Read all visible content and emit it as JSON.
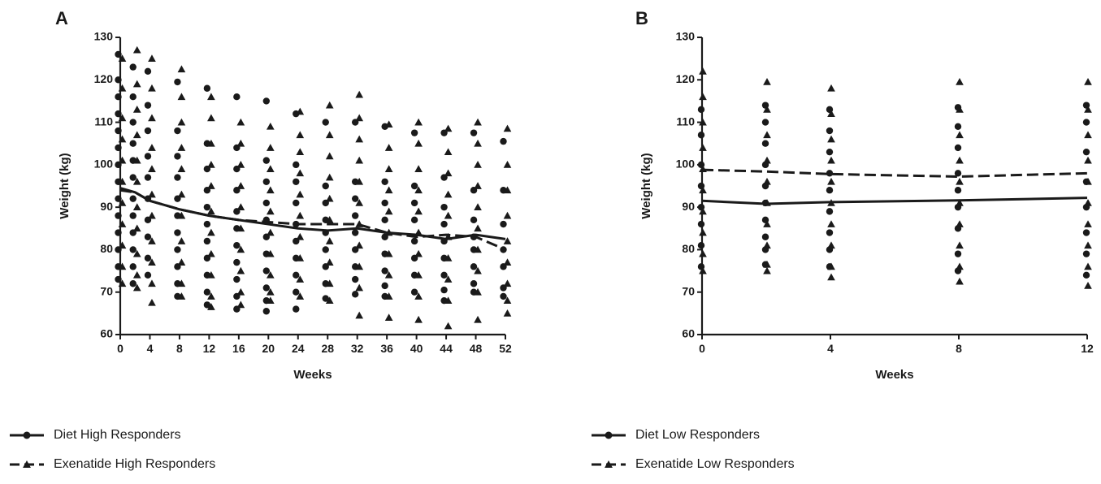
{
  "colors": {
    "ink": "#1a1a1a",
    "background": "#ffffff"
  },
  "chart_data": [
    {
      "type": "scatter",
      "panel_label": "A",
      "title": "",
      "xlabel": "Weeks",
      "ylabel": "Weight (kg)",
      "xlim": [
        0,
        52
      ],
      "ylim": [
        60,
        130
      ],
      "x_ticks": [
        0,
        4,
        8,
        12,
        16,
        20,
        24,
        28,
        32,
        36,
        40,
        44,
        48,
        52
      ],
      "y_ticks": [
        60,
        70,
        80,
        90,
        100,
        110,
        120,
        130
      ],
      "legend": [
        {
          "label": "Diet High Responders",
          "style": "solid",
          "marker": "circle"
        },
        {
          "label": "Exenatide High Responders",
          "style": "dashed",
          "marker": "triangle"
        }
      ],
      "series": [
        {
          "name": "Diet High Responders",
          "marker": "circle",
          "line_style": "solid",
          "mean": {
            "x": [
              0,
              2,
              4,
              8,
              12,
              16,
              20,
              24,
              28,
              32,
              36,
              40,
              44,
              48,
              52
            ],
            "y": [
              94.5,
              93.5,
              91.5,
              89.5,
              88,
              87,
              86,
              85,
              84.5,
              85,
              84,
              83.5,
              82.5,
              83.5,
              82.5
            ]
          },
          "points": [
            {
              "x": 0,
              "y": [
                126,
                120,
                116,
                112,
                108,
                104,
                100,
                96,
                92,
                88,
                84,
                80,
                76,
                73
              ]
            },
            {
              "x": 2,
              "y": [
                123,
                116,
                110,
                105,
                101,
                97,
                92,
                88,
                84,
                80,
                76,
                72
              ]
            },
            {
              "x": 4,
              "y": [
                122,
                114,
                108,
                102,
                97,
                92,
                87,
                83,
                78,
                74
              ]
            },
            {
              "x": 8,
              "y": [
                119.5,
                108,
                102,
                97,
                92,
                88,
                84,
                80,
                76,
                72,
                69
              ]
            },
            {
              "x": 12,
              "y": [
                118,
                105,
                99,
                94,
                90,
                86,
                82,
                78,
                74,
                70,
                67
              ]
            },
            {
              "x": 16,
              "y": [
                116,
                104,
                99,
                94,
                89,
                85,
                81,
                77,
                73,
                69,
                66
              ]
            },
            {
              "x": 20,
              "y": [
                115,
                101,
                96,
                91,
                87,
                83,
                79,
                75,
                71,
                68,
                65.5
              ]
            },
            {
              "x": 24,
              "y": [
                112,
                100,
                96,
                91,
                86,
                82,
                78,
                74,
                70,
                66
              ]
            },
            {
              "x": 28,
              "y": [
                110,
                95,
                91,
                87,
                84,
                80,
                76,
                72,
                68.5
              ]
            },
            {
              "x": 32,
              "y": [
                110,
                96,
                92,
                88,
                84,
                80,
                76,
                73,
                69.5
              ]
            },
            {
              "x": 36,
              "y": [
                109,
                96,
                91,
                87,
                83,
                79,
                75,
                71.5,
                69
              ]
            },
            {
              "x": 40,
              "y": [
                107.5,
                95,
                91,
                87,
                82,
                78,
                74,
                70
              ]
            },
            {
              "x": 44,
              "y": [
                107.5,
                97,
                90,
                86,
                82,
                78,
                74,
                70.5,
                68
              ]
            },
            {
              "x": 48,
              "y": [
                107.5,
                94,
                87,
                83,
                80,
                76,
                72,
                70
              ]
            },
            {
              "x": 52,
              "y": [
                105.5,
                94,
                86,
                80,
                76,
                71,
                69
              ]
            }
          ]
        },
        {
          "name": "Exenatide High Responders",
          "marker": "triangle",
          "line_style": "dashed",
          "mean": {
            "x": [
              0,
              2,
              4,
              8,
              12,
              16,
              20,
              24,
              28,
              32,
              36,
              40,
              44,
              48,
              52
            ],
            "y": [
              94,
              93.5,
              91.5,
              89.5,
              88,
              87,
              86.5,
              86,
              86,
              86,
              84,
              83,
              83.5,
              83,
              80
            ]
          },
          "points": [
            {
              "x": 0,
              "y": [
                125,
                118,
                111,
                106,
                101,
                96,
                91,
                86,
                81,
                76,
                72
              ]
            },
            {
              "x": 2,
              "y": [
                127,
                119,
                113,
                107,
                101,
                96,
                90,
                85,
                79,
                74,
                71
              ]
            },
            {
              "x": 4,
              "y": [
                125,
                118,
                111,
                104,
                99,
                93,
                88,
                82,
                77,
                72,
                67.5
              ]
            },
            {
              "x": 8,
              "y": [
                122.5,
                116,
                110,
                104,
                99,
                93,
                88,
                82,
                77,
                72,
                69
              ]
            },
            {
              "x": 12,
              "y": [
                116,
                111,
                105,
                100,
                95,
                89,
                84,
                79,
                74,
                69,
                66.5
              ]
            },
            {
              "x": 16,
              "y": [
                110,
                105,
                100,
                95,
                90,
                85,
                80,
                75,
                70,
                67
              ]
            },
            {
              "x": 20,
              "y": [
                109,
                104,
                99,
                94,
                89,
                84,
                79,
                74,
                70,
                68
              ]
            },
            {
              "x": 24,
              "y": [
                112.5,
                107,
                103,
                98,
                93,
                88,
                83,
                78,
                73,
                69
              ]
            },
            {
              "x": 28,
              "y": [
                114,
                107,
                102,
                97,
                92,
                87,
                82,
                77,
                72,
                68
              ]
            },
            {
              "x": 32,
              "y": [
                116.5,
                111,
                106,
                101,
                96,
                91,
                86,
                81,
                76,
                71,
                64.5
              ]
            },
            {
              "x": 36,
              "y": [
                109.5,
                104,
                99,
                94,
                89,
                84,
                79,
                74,
                69,
                64
              ]
            },
            {
              "x": 40,
              "y": [
                110,
                105,
                99,
                94,
                89,
                84,
                79,
                74,
                69,
                63.5
              ]
            },
            {
              "x": 44,
              "y": [
                108.5,
                103,
                98,
                93,
                88,
                83,
                78,
                73,
                68,
                62
              ]
            },
            {
              "x": 48,
              "y": [
                110,
                105,
                100,
                95,
                90,
                85,
                80,
                75,
                70,
                63.5
              ]
            },
            {
              "x": 52,
              "y": [
                108.5,
                100,
                94,
                88,
                82,
                77,
                72,
                68,
                65
              ]
            }
          ]
        }
      ]
    },
    {
      "type": "scatter",
      "panel_label": "B",
      "title": "",
      "xlabel": "Weeks",
      "ylabel": "Weight (kg)",
      "xlim": [
        0,
        12
      ],
      "ylim": [
        60,
        130
      ],
      "x_ticks": [
        0,
        4,
        8,
        12
      ],
      "y_ticks": [
        60,
        70,
        80,
        90,
        100,
        110,
        120,
        130
      ],
      "legend": [
        {
          "label": "Diet Low Responders",
          "style": "solid",
          "marker": "circle"
        },
        {
          "label": "Exenatide Low Responders",
          "style": "dashed",
          "marker": "triangle"
        }
      ],
      "series": [
        {
          "name": "Diet Low Responders",
          "marker": "circle",
          "line_style": "solid",
          "mean": {
            "x": [
              0,
              2,
              4,
              8,
              12
            ],
            "y": [
              91.5,
              90.8,
              91.2,
              91.6,
              92.2
            ]
          },
          "points": [
            {
              "x": 0,
              "y": [
                113,
                107,
                100,
                95,
                90,
                86,
                81,
                76
              ]
            },
            {
              "x": 2,
              "y": [
                114,
                110,
                105,
                100,
                95,
                91,
                87,
                83,
                80,
                76.5
              ]
            },
            {
              "x": 4,
              "y": [
                113,
                108,
                103,
                98,
                94,
                89,
                84,
                80,
                76
              ]
            },
            {
              "x": 8,
              "y": [
                113.5,
                109,
                104,
                98,
                94,
                90,
                85,
                79,
                75
              ]
            },
            {
              "x": 12,
              "y": [
                114,
                110,
                103,
                96,
                90,
                84,
                79,
                74
              ]
            }
          ]
        },
        {
          "name": "Exenatide Low Responders",
          "marker": "triangle",
          "line_style": "dashed",
          "mean": {
            "x": [
              0,
              2,
              4,
              8,
              12
            ],
            "y": [
              98.8,
              98.4,
              97.8,
              97.2,
              98.0
            ]
          },
          "points": [
            {
              "x": 0,
              "y": [
                122,
                116,
                110,
                104,
                99,
                94,
                89,
                84,
                79,
                75
              ]
            },
            {
              "x": 2,
              "y": [
                119.5,
                113,
                107,
                101,
                96,
                91,
                86,
                81,
                76.5,
                75
              ]
            },
            {
              "x": 4,
              "y": [
                118,
                112,
                106,
                101,
                96,
                91,
                86,
                81,
                76,
                73.5
              ]
            },
            {
              "x": 8,
              "y": [
                119.5,
                113,
                107,
                101,
                96,
                91,
                86,
                81,
                76,
                72.5
              ]
            },
            {
              "x": 12,
              "y": [
                119.5,
                113,
                107,
                101,
                96,
                91,
                86,
                81,
                76,
                71.5
              ]
            }
          ]
        }
      ]
    }
  ]
}
